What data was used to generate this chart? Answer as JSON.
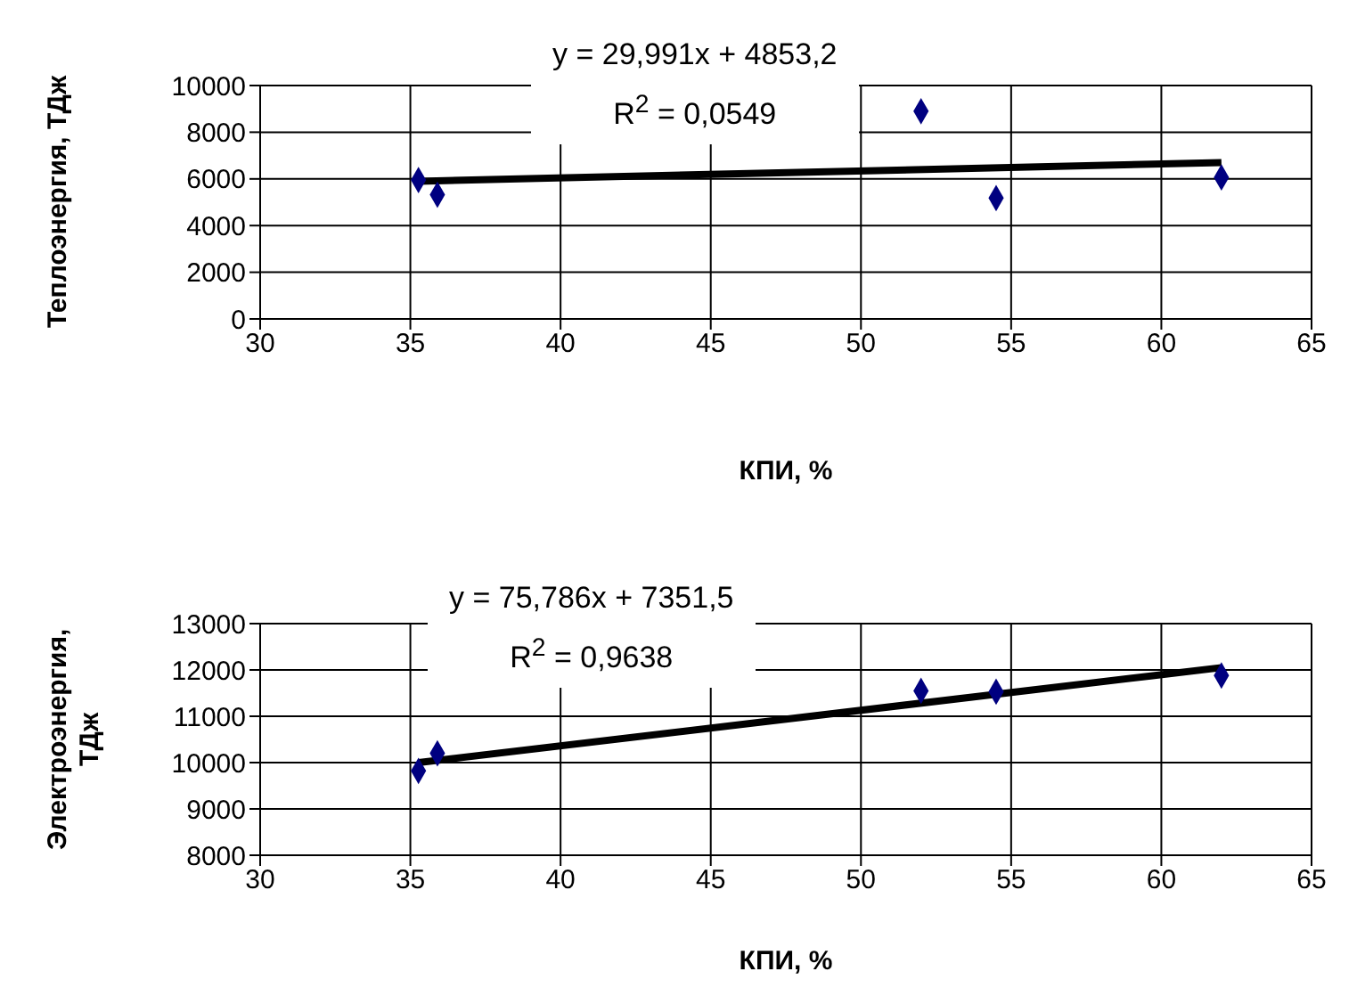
{
  "chart_data": [
    {
      "type": "scatter",
      "xlabel": "КПИ, %",
      "ylabel": "Теплоэнергия, ТДж",
      "annotations": [
        "y = 29,991x + 4853,2",
        "R$^{2}$ = 0,0549"
      ],
      "xlim": [
        30,
        65
      ],
      "xticks": [
        30,
        35,
        40,
        45,
        50,
        55,
        60,
        65
      ],
      "ylim": [
        0,
        10000
      ],
      "yticks": [
        0,
        2000,
        4000,
        6000,
        8000,
        10000
      ],
      "grid": true,
      "marker": "diamond",
      "series": [
        {
          "color": "#000080",
          "x": [
            35.27,
            35.9,
            52.0,
            54.5,
            62.0
          ],
          "values": [
            5950,
            5320,
            8900,
            5180,
            6060
          ]
        },
        {
          "type": "line",
          "color": "#000000",
          "marker": "none",
          "x": [
            35.27,
            62.0
          ],
          "values": [
            5900,
            6700
          ]
        }
      ]
    },
    {
      "type": "scatter",
      "xlabel": "КПИ, %",
      "ylabel": "Электроэнергия, ТДж",
      "annotations": [
        "y = 75,786x + 7351,5",
        "R$^{2}$ = 0,9638"
      ],
      "xlim": [
        30,
        65
      ],
      "xticks": [
        30,
        35,
        40,
        45,
        50,
        55,
        60,
        65
      ],
      "ylim": [
        8000,
        13000
      ],
      "yticks": [
        8000,
        9000,
        10000,
        11000,
        12000,
        13000
      ],
      "grid": true,
      "marker": "diamond",
      "series": [
        {
          "color": "#000080",
          "x": [
            35.27,
            35.9,
            52.0,
            54.5,
            62.0
          ],
          "values": [
            9820,
            10200,
            11550,
            11530,
            11880
          ]
        },
        {
          "type": "line",
          "color": "#000000",
          "marker": "none",
          "x": [
            35.27,
            62.0
          ],
          "values": [
            10000,
            12050
          ]
        }
      ]
    }
  ]
}
